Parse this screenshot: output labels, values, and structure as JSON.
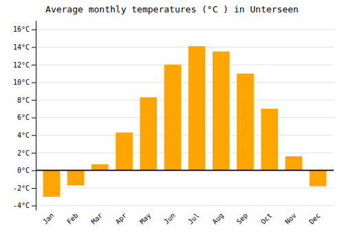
{
  "chart_data": {
    "type": "bar",
    "title": "Average monthly temperatures (°C ) in Unterseen",
    "categories": [
      "Jan",
      "Feb",
      "Mar",
      "Apr",
      "May",
      "Jun",
      "Jul",
      "Aug",
      "Sep",
      "Oct",
      "Nov",
      "Dec"
    ],
    "values": [
      -3.0,
      -1.7,
      0.7,
      4.3,
      8.3,
      12.0,
      14.1,
      13.5,
      11.0,
      7.0,
      1.6,
      -1.8
    ],
    "color": "#FFA500",
    "ylim": [
      -4.5,
      17.0
    ],
    "yticks": [
      {
        "value": -4,
        "label": "-4°C"
      },
      {
        "value": -2,
        "label": "-2°C"
      },
      {
        "value": 0,
        "label": "0°C"
      },
      {
        "value": 2,
        "label": "2°C"
      },
      {
        "value": 4,
        "label": "4°C"
      },
      {
        "value": 6,
        "label": "6°C"
      },
      {
        "value": 8,
        "label": "8°C"
      },
      {
        "value": 10,
        "label": "10°C"
      },
      {
        "value": 12,
        "label": "12°C"
      },
      {
        "value": 14,
        "label": "14°C"
      },
      {
        "value": 16,
        "label": "16°C"
      }
    ],
    "grid": true
  }
}
